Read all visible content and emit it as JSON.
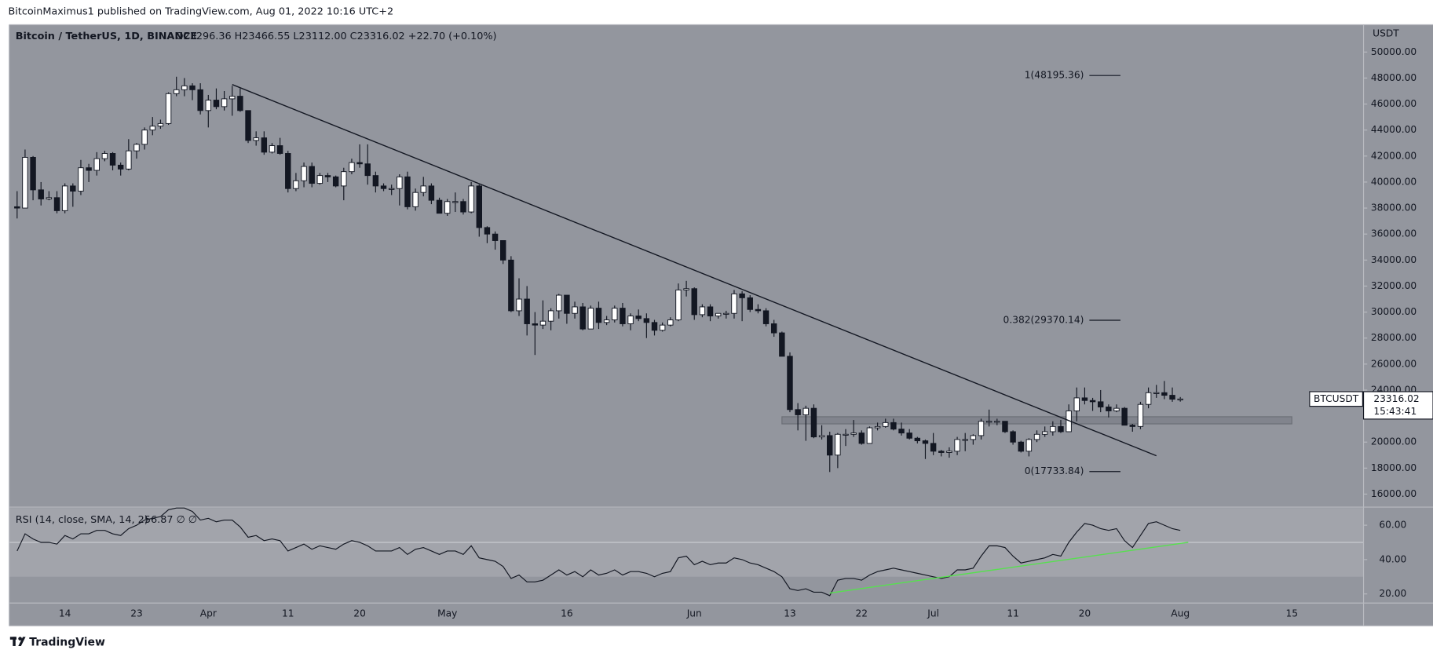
{
  "published_by": "BitcoinMaximus1 published on TradingView.com, Aug 01, 2022 10:16 UTC+2",
  "footer": "TradingView",
  "chart_data": [
    {
      "type": "candlestick",
      "title": "Bitcoin / TetherUS, 1D, BINANCE",
      "ohlc_text": "O23296.36 H23466.55 L23112.00 C23316.02 +22.70 (+0.10%)",
      "unit": "USDT",
      "symbol_tag": "BTCUSDT",
      "last_price_label": "23316.02",
      "countdown": "15:43:41",
      "up_color": "#ffffff",
      "down_color": "#131722",
      "wick_color": "#131722",
      "grid": false,
      "xlim": [
        "2022-03-07",
        "2022-08-24"
      ],
      "ylim": [
        15000,
        52100
      ],
      "yticks": [
        {
          "value": 16000,
          "label": "16000.00"
        },
        {
          "value": 18000,
          "label": "18000.00"
        },
        {
          "value": 20000,
          "label": "20000.00"
        },
        {
          "value": 22000,
          "label": "22000.00"
        },
        {
          "value": 24000,
          "label": "24000.00"
        },
        {
          "value": 26000,
          "label": "26000.00"
        },
        {
          "value": 28000,
          "label": "28000.00"
        },
        {
          "value": 30000,
          "label": "30000.00"
        },
        {
          "value": 32000,
          "label": "32000.00"
        },
        {
          "value": 34000,
          "label": "34000.00"
        },
        {
          "value": 36000,
          "label": "36000.00"
        },
        {
          "value": 38000,
          "label": "38000.00"
        },
        {
          "value": 40000,
          "label": "40000.00"
        },
        {
          "value": 42000,
          "label": "42000.00"
        },
        {
          "value": 44000,
          "label": "44000.00"
        },
        {
          "value": 46000,
          "label": "46000.00"
        },
        {
          "value": 48000,
          "label": "48000.00"
        },
        {
          "value": 50000,
          "label": "50000.00"
        }
      ],
      "xticks": [
        {
          "value": "2022-03-14",
          "label": "14"
        },
        {
          "value": "2022-03-23",
          "label": "23"
        },
        {
          "value": "2022-04-01",
          "label": "Apr"
        },
        {
          "value": "2022-04-11",
          "label": "11"
        },
        {
          "value": "2022-04-20",
          "label": "20"
        },
        {
          "value": "2022-05-01",
          "label": "May"
        },
        {
          "value": "2022-05-16",
          "label": "16"
        },
        {
          "value": "2022-06-01",
          "label": "Jun"
        },
        {
          "value": "2022-06-13",
          "label": "13"
        },
        {
          "value": "2022-06-22",
          "label": "22"
        },
        {
          "value": "2022-07-01",
          "label": "Jul"
        },
        {
          "value": "2022-07-11",
          "label": "11"
        },
        {
          "value": "2022-07-20",
          "label": "20"
        },
        {
          "value": "2022-08-01",
          "label": "Aug"
        },
        {
          "value": "2022-08-15",
          "label": "15"
        }
      ],
      "fib_levels": [
        {
          "label": "1(48195.36)",
          "value": 48195.36
        },
        {
          "label": "0.382(29370.14)",
          "value": 29370.14
        },
        {
          "label": "0(17733.84)",
          "value": 17733.84
        }
      ],
      "trendlines": [
        {
          "from": {
            "x": "2022-04-04",
            "y": 47500
          },
          "to": {
            "x": "2022-07-29",
            "y": 18950
          },
          "color": "#131722"
        }
      ],
      "zones": [
        {
          "x0": "2022-06-12",
          "x1": "2022-08-15",
          "y0": 21400,
          "y1": 21950,
          "color": "#7d8088"
        }
      ],
      "x": [
        "2022-03-08",
        "2022-03-09",
        "2022-03-10",
        "2022-03-11",
        "2022-03-12",
        "2022-03-13",
        "2022-03-14",
        "2022-03-15",
        "2022-03-16",
        "2022-03-17",
        "2022-03-18",
        "2022-03-19",
        "2022-03-20",
        "2022-03-21",
        "2022-03-22",
        "2022-03-23",
        "2022-03-24",
        "2022-03-25",
        "2022-03-26",
        "2022-03-27",
        "2022-03-28",
        "2022-03-29",
        "2022-03-30",
        "2022-03-31",
        "2022-04-01",
        "2022-04-02",
        "2022-04-03",
        "2022-04-04",
        "2022-04-05",
        "2022-04-06",
        "2022-04-07",
        "2022-04-08",
        "2022-04-09",
        "2022-04-10",
        "2022-04-11",
        "2022-04-12",
        "2022-04-13",
        "2022-04-14",
        "2022-04-15",
        "2022-04-16",
        "2022-04-17",
        "2022-04-18",
        "2022-04-19",
        "2022-04-20",
        "2022-04-21",
        "2022-04-22",
        "2022-04-23",
        "2022-04-24",
        "2022-04-25",
        "2022-04-26",
        "2022-04-27",
        "2022-04-28",
        "2022-04-29",
        "2022-04-30",
        "2022-05-01",
        "2022-05-02",
        "2022-05-03",
        "2022-05-04",
        "2022-05-05",
        "2022-05-06",
        "2022-05-07",
        "2022-05-08",
        "2022-05-09",
        "2022-05-10",
        "2022-05-11",
        "2022-05-12",
        "2022-05-13",
        "2022-05-14",
        "2022-05-15",
        "2022-05-16",
        "2022-05-17",
        "2022-05-18",
        "2022-05-19",
        "2022-05-20",
        "2022-05-21",
        "2022-05-22",
        "2022-05-23",
        "2022-05-24",
        "2022-05-25",
        "2022-05-26",
        "2022-05-27",
        "2022-05-28",
        "2022-05-29",
        "2022-05-30",
        "2022-05-31",
        "2022-06-01",
        "2022-06-02",
        "2022-06-03",
        "2022-06-04",
        "2022-06-05",
        "2022-06-06",
        "2022-06-07",
        "2022-06-08",
        "2022-06-09",
        "2022-06-10",
        "2022-06-11",
        "2022-06-12",
        "2022-06-13",
        "2022-06-14",
        "2022-06-15",
        "2022-06-16",
        "2022-06-17",
        "2022-06-18",
        "2022-06-19",
        "2022-06-20",
        "2022-06-21",
        "2022-06-22",
        "2022-06-23",
        "2022-06-24",
        "2022-06-25",
        "2022-06-26",
        "2022-06-27",
        "2022-06-28",
        "2022-06-29",
        "2022-06-30",
        "2022-07-01",
        "2022-07-02",
        "2022-07-03",
        "2022-07-04",
        "2022-07-05",
        "2022-07-06",
        "2022-07-07",
        "2022-07-08",
        "2022-07-09",
        "2022-07-10",
        "2022-07-11",
        "2022-07-12",
        "2022-07-13",
        "2022-07-14",
        "2022-07-15",
        "2022-07-16",
        "2022-07-17",
        "2022-07-18",
        "2022-07-19",
        "2022-07-20",
        "2022-07-21",
        "2022-07-22",
        "2022-07-23",
        "2022-07-24",
        "2022-07-25",
        "2022-07-26",
        "2022-07-27",
        "2022-07-28",
        "2022-07-29",
        "2022-07-30",
        "2022-07-31",
        "2022-08-01"
      ],
      "open": [
        38100,
        38000,
        41900,
        39400,
        38700,
        38800,
        37800,
        39700,
        39300,
        41100,
        40900,
        41800,
        42200,
        41300,
        41000,
        42400,
        42900,
        44000,
        44300,
        44500,
        46800,
        47100,
        47400,
        47100,
        45500,
        46300,
        45800,
        46400,
        46600,
        45500,
        43200,
        43400,
        42300,
        42800,
        42200,
        39500,
        40100,
        41200,
        39900,
        40500,
        40400,
        39700,
        40800,
        41500,
        41400,
        40500,
        39700,
        39500,
        39500,
        40400,
        38100,
        39200,
        39700,
        38600,
        37600,
        38500,
        38500,
        37700,
        39700,
        36500,
        36000,
        35500,
        34000,
        30100,
        31000,
        29100,
        29000,
        29300,
        30100,
        31300,
        29900,
        30400,
        28700,
        30300,
        29200,
        29400,
        30300,
        29100,
        29700,
        29500,
        29200,
        28600,
        29000,
        29400,
        31700,
        31800,
        29800,
        30400,
        29700,
        29900,
        29900,
        31400,
        31100,
        30200,
        30100,
        29100,
        28400,
        26600,
        22500,
        22100,
        22600,
        20400,
        20500,
        19000,
        20600,
        20600,
        20700,
        19900,
        21100,
        21200,
        21500,
        21000,
        20700,
        20300,
        20100,
        19900,
        19300,
        19200,
        19300,
        20200,
        20200,
        20500,
        21600,
        21600,
        21600,
        20800,
        20000,
        19300,
        20200,
        20600,
        20800,
        21200,
        20800,
        22400,
        23400,
        23200,
        23100,
        22700,
        22400,
        22600,
        21300,
        21200,
        22900,
        23800,
        23800,
        23600,
        23296.36
      ],
      "high": [
        39300,
        42500,
        42000,
        40000,
        39300,
        39300,
        39900,
        39900,
        41700,
        41400,
        42300,
        42400,
        42300,
        41500,
        43300,
        43000,
        44200,
        45000,
        44800,
        46900,
        48100,
        48000,
        47600,
        47600,
        46700,
        47200,
        47000,
        47400,
        47200,
        45500,
        43900,
        43900,
        43000,
        43400,
        42400,
        40700,
        41500,
        41500,
        40700,
        40700,
        40500,
        41100,
        41800,
        42900,
        42900,
        40800,
        39900,
        39800,
        40600,
        40800,
        39500,
        40400,
        39900,
        38800,
        38700,
        39200,
        38700,
        40000,
        39800,
        36600,
        36200,
        35500,
        34300,
        32600,
        32000,
        30000,
        30900,
        30300,
        31400,
        31300,
        30800,
        30700,
        30500,
        30800,
        29700,
        30500,
        30700,
        29900,
        30200,
        29900,
        29400,
        29200,
        29600,
        32200,
        32400,
        31900,
        30600,
        30600,
        29900,
        30100,
        31700,
        31600,
        31300,
        30600,
        30300,
        29400,
        28500,
        26900,
        23000,
        22800,
        22900,
        21300,
        20800,
        20700,
        21000,
        21700,
        20900,
        21200,
        21500,
        21800,
        21800,
        21500,
        21000,
        20400,
        20200,
        20700,
        19400,
        19600,
        20400,
        20700,
        20600,
        21800,
        22500,
        21800,
        21600,
        20900,
        20100,
        20300,
        20900,
        21200,
        21600,
        21700,
        22900,
        24200,
        24200,
        23400,
        24000,
        22900,
        22900,
        22700,
        21400,
        23100,
        24200,
        24400,
        24700,
        24200,
        23466.55
      ],
      "low": [
        37200,
        38000,
        38600,
        38200,
        38600,
        37600,
        37600,
        38100,
        39000,
        40000,
        40500,
        41600,
        40900,
        40500,
        40900,
        41800,
        42500,
        43600,
        44100,
        44400,
        46600,
        46600,
        46300,
        45200,
        44200,
        45600,
        45500,
        45100,
        45400,
        43000,
        42800,
        42100,
        42200,
        42100,
        39200,
        39300,
        39600,
        39600,
        39800,
        40000,
        39600,
        38600,
        40600,
        41100,
        39800,
        39200,
        39300,
        39000,
        38200,
        37900,
        37800,
        38900,
        38300,
        37600,
        37400,
        37700,
        37500,
        37600,
        35800,
        35300,
        34800,
        33700,
        30000,
        29700,
        28200,
        26700,
        28700,
        28600,
        29500,
        29100,
        29500,
        28600,
        28700,
        28700,
        29000,
        29200,
        28900,
        28600,
        29300,
        28000,
        28200,
        28500,
        28900,
        29300,
        31200,
        29400,
        29600,
        29300,
        29500,
        29500,
        29500,
        29300,
        30000,
        29900,
        28900,
        28100,
        26600,
        22300,
        20900,
        20100,
        20300,
        20200,
        17700,
        18000,
        19700,
        20400,
        19800,
        19900,
        20900,
        21100,
        20900,
        20500,
        20200,
        19900,
        18700,
        19000,
        18900,
        18800,
        19000,
        19300,
        19800,
        20200,
        21200,
        21300,
        20700,
        19800,
        19200,
        18900,
        20000,
        20400,
        20500,
        20700,
        20800,
        21600,
        22900,
        22400,
        22300,
        21900,
        22300,
        21300,
        20800,
        21000,
        22600,
        23400,
        23300,
        23100,
        23112
      ],
      "close": [
        38000,
        41900,
        39400,
        38700,
        38800,
        37800,
        39700,
        39300,
        41100,
        40900,
        41800,
        42200,
        41300,
        41000,
        42400,
        42900,
        44000,
        44300,
        44500,
        46800,
        47100,
        47400,
        47100,
        45500,
        46300,
        45800,
        46400,
        46600,
        45500,
        43200,
        43400,
        42300,
        42800,
        42200,
        39500,
        40100,
        41200,
        39900,
        40500,
        40400,
        39700,
        40800,
        41500,
        41400,
        40500,
        39700,
        39500,
        39500,
        40400,
        38100,
        39200,
        39700,
        38600,
        37600,
        38500,
        38500,
        37700,
        39700,
        36500,
        36000,
        35500,
        34000,
        30100,
        31000,
        29100,
        29000,
        29300,
        30100,
        31300,
        29900,
        30400,
        28700,
        30300,
        29200,
        29400,
        30300,
        29100,
        29700,
        29500,
        29200,
        28600,
        29000,
        29400,
        31700,
        31800,
        29800,
        30400,
        29700,
        29900,
        29900,
        31400,
        31100,
        30200,
        30100,
        29100,
        28400,
        26600,
        22500,
        22100,
        22600,
        20400,
        20500,
        19000,
        20600,
        20600,
        20700,
        19900,
        21100,
        21200,
        21500,
        21000,
        20700,
        20300,
        20100,
        19900,
        19300,
        19200,
        19300,
        20200,
        20200,
        20500,
        21600,
        21600,
        21600,
        20800,
        20000,
        19300,
        20200,
        20600,
        20800,
        21200,
        20800,
        22400,
        23400,
        23200,
        23100,
        22700,
        22400,
        22600,
        21300,
        21200,
        22900,
        23800,
        23800,
        23600,
        23300,
        23316.02
      ]
    },
    {
      "type": "line",
      "title": "RSI (14, close, SMA, 14, 2)",
      "value_text": "56.87  ∅  ∅",
      "color": "#131722",
      "band": [
        30,
        70
      ],
      "band_color": "#a2a4ab",
      "levels": [
        50
      ],
      "ylim": [
        14.7,
        70
      ],
      "yticks": [
        {
          "value": 20,
          "label": "20.00"
        },
        {
          "value": 40,
          "label": "40.00"
        },
        {
          "value": 60,
          "label": "60.00"
        }
      ],
      "trendlines": [
        {
          "from": {
            "x": "2022-06-18",
            "y": 20.5
          },
          "to": {
            "x": "2022-08-02",
            "y": 50
          },
          "color": "#57e04f"
        }
      ],
      "values": [
        45,
        55,
        52,
        50,
        50,
        49,
        54,
        52,
        55,
        55,
        57,
        57,
        55,
        54,
        58,
        60,
        63,
        64,
        65,
        69,
        70,
        70,
        68,
        63,
        64,
        62,
        63,
        63,
        59,
        53,
        54,
        51,
        52,
        51,
        45,
        47,
        49,
        46,
        48,
        47,
        46,
        49,
        51,
        50,
        48,
        45,
        45,
        45,
        47,
        43,
        46,
        47,
        45,
        43,
        45,
        45,
        43,
        48,
        41,
        40,
        39,
        36,
        29,
        31,
        27,
        27,
        28,
        31,
        34,
        31,
        33,
        30,
        34,
        31,
        32,
        34,
        31,
        33,
        33,
        32,
        30,
        32,
        33,
        41,
        42,
        37,
        39,
        37,
        38,
        38,
        41,
        40,
        38,
        37,
        35,
        33,
        30,
        23,
        22,
        23,
        21,
        21,
        19,
        28,
        29,
        29,
        28,
        31,
        33,
        34,
        35,
        34,
        33,
        32,
        31,
        30,
        29,
        30,
        34,
        34,
        35,
        42,
        48,
        48,
        47,
        42,
        38,
        39,
        40,
        41,
        43,
        42,
        50,
        56,
        61,
        60,
        58,
        57,
        58,
        51,
        47,
        54,
        61,
        62,
        60,
        58,
        57
      ]
    }
  ]
}
